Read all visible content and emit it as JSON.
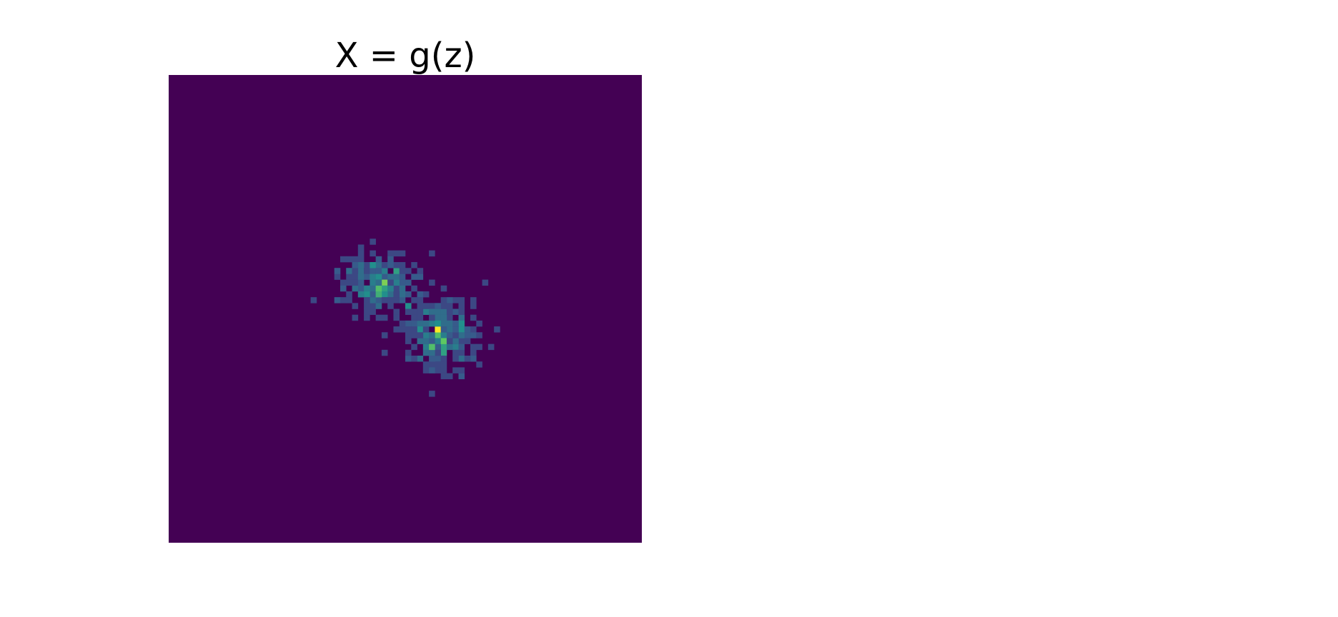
{
  "chart_data": {
    "type": "heatmap",
    "title": "X = g(z)",
    "xlabel": "",
    "ylabel": "",
    "axes": "off",
    "grid": false,
    "legend": "none",
    "colormap": "viridis",
    "colors": {
      "background": "#ffffff",
      "colormap_stops": [
        "#440154",
        "#3b528b",
        "#21918c",
        "#5ec962",
        "#fde725"
      ]
    },
    "grid_size": [
      80,
      80
    ],
    "clusters": [
      {
        "name": "",
        "center": [
          35,
          35
        ],
        "spread": [
          3.2,
          2.6
        ],
        "peak": 0.75,
        "points": 220
      },
      {
        "name": "",
        "center": [
          45.5,
          43.5
        ],
        "spread": [
          3.4,
          3.2
        ],
        "peak": 1.0,
        "points": 260
      }
    ],
    "hot_cells": [
      {
        "x": 45,
        "y": 43,
        "value": 1.0
      },
      {
        "x": 36,
        "y": 35,
        "value": 0.8
      },
      {
        "x": 35,
        "y": 36,
        "value": 0.7
      },
      {
        "x": 46,
        "y": 45,
        "value": 0.75
      },
      {
        "x": 44,
        "y": 46,
        "value": 0.7
      }
    ]
  }
}
